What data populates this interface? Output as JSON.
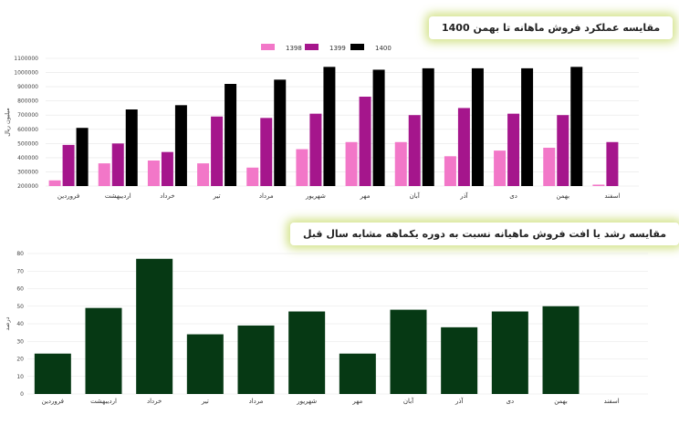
{
  "chart_data": [
    {
      "type": "bar",
      "title": "مقایسه عملکرد فروش ماهانه تا بهمن 1400",
      "ylabel": "میلیون ریال",
      "ylim": [
        200000,
        1100000
      ],
      "yticks": [
        "200000",
        "300000",
        "400000",
        "500000",
        "600000",
        "700000",
        "800000",
        "900000",
        "1000000",
        "1100000"
      ],
      "categories": [
        "فروردین",
        "اردیبهشت",
        "خرداد",
        "تیر",
        "مرداد",
        "شهریور",
        "مهر",
        "آبان",
        "آذر",
        "دی",
        "بهمن",
        "اسفند"
      ],
      "series": [
        {
          "name": "1398",
          "color": "#f277c8",
          "values": [
            240000,
            360000,
            380000,
            360000,
            330000,
            460000,
            510000,
            510000,
            410000,
            450000,
            470000,
            210000
          ]
        },
        {
          "name": "1399",
          "color": "#a5168c",
          "values": [
            490000,
            500000,
            440000,
            690000,
            680000,
            710000,
            830000,
            700000,
            750000,
            710000,
            700000,
            510000
          ]
        },
        {
          "name": "1400",
          "color": "#000000",
          "values": [
            610000,
            740000,
            770000,
            920000,
            950000,
            1040000,
            1020000,
            1030000,
            1030000,
            1030000,
            1040000,
            null
          ]
        }
      ],
      "legend": "top",
      "grid": true
    },
    {
      "type": "bar",
      "title": "مقایسه رشد یا افت فروش ماهیانه نسبت به دوره یکماهه مشابه سال قبل",
      "ylabel": "درصد",
      "ylim": [
        0,
        80
      ],
      "yticks": [
        "0",
        "10",
        "20",
        "30",
        "40",
        "50",
        "60",
        "70",
        "80"
      ],
      "categories": [
        "فروردین",
        "اردیبهشت",
        "خرداد",
        "تیر",
        "مرداد",
        "شهریور",
        "مهر",
        "آبان",
        "آذر",
        "دی",
        "بهمن",
        "اسفند"
      ],
      "color": "#063914",
      "values": [
        23,
        49,
        77,
        34,
        39,
        47,
        23,
        48,
        38,
        47,
        50,
        null
      ],
      "grid": true
    }
  ]
}
